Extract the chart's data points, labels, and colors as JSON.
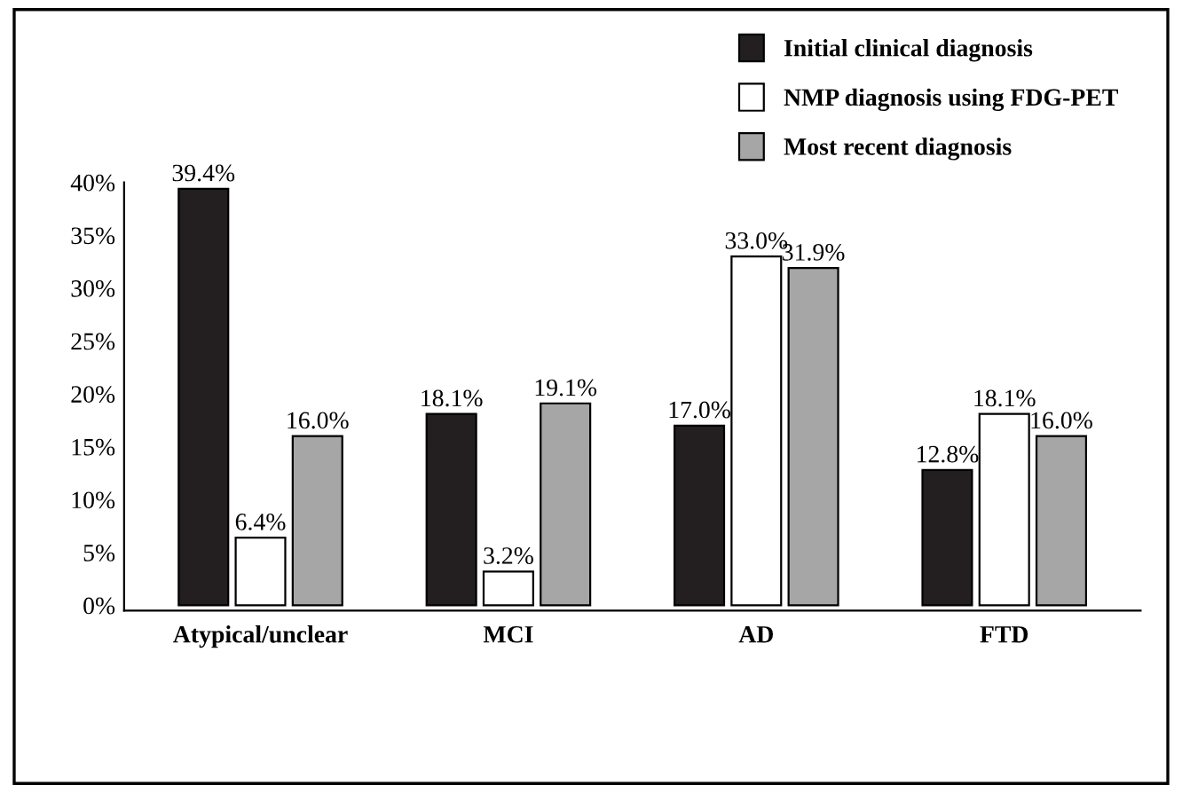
{
  "chart_data": {
    "type": "bar",
    "categories": [
      "Atypical/unclear",
      "MCI",
      "AD",
      "FTD"
    ],
    "series": [
      {
        "name": "Initial clinical diagnosis",
        "color": "#231f20",
        "values": [
          39.4,
          18.1,
          17.0,
          12.8
        ],
        "value_labels": [
          "39.4%",
          "18.1%",
          "17.0%",
          "12.8%"
        ]
      },
      {
        "name": "NMP diagnosis using FDG-PET",
        "color": "#ffffff",
        "values": [
          6.4,
          3.2,
          33.0,
          18.1
        ],
        "value_labels": [
          "6.4%",
          "3.2%",
          "33.0%",
          "18.1%"
        ]
      },
      {
        "name": "Most recent diagnosis",
        "color": "#a6a6a6",
        "values": [
          16.0,
          19.1,
          31.9,
          16.0
        ],
        "value_labels": [
          "16.0%",
          "19.1%",
          "31.9%",
          "16.0%"
        ]
      }
    ],
    "ylim": [
      -0.5,
      40
    ],
    "yticks": [
      {
        "value": 0,
        "label": "0%"
      },
      {
        "value": 5,
        "label": "5%"
      },
      {
        "value": 10,
        "label": "10%"
      },
      {
        "value": 15,
        "label": "15%"
      },
      {
        "value": 20,
        "label": "20%"
      },
      {
        "value": 25,
        "label": "25%"
      },
      {
        "value": 30,
        "label": "30%"
      },
      {
        "value": 35,
        "label": "35%"
      },
      {
        "value": 40,
        "label": "40%"
      }
    ],
    "legend": "top right",
    "grid": false
  }
}
